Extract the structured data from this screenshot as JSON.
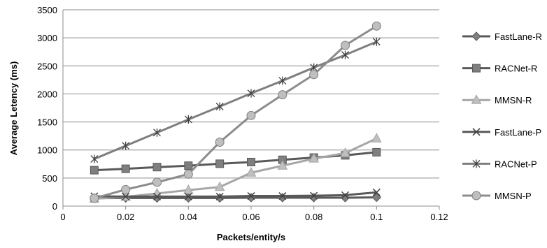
{
  "chart_data": {
    "type": "line",
    "title": "",
    "xlabel": "Packets/entity/s",
    "ylabel": "Average Letency (ms)",
    "xlim": [
      0,
      0.12
    ],
    "ylim": [
      0,
      3500
    ],
    "x_ticks": [
      "0",
      "0.02",
      "0.04",
      "0.06",
      "0.08",
      "0.1",
      "0.12"
    ],
    "y_ticks": [
      "0",
      "500",
      "1000",
      "1500",
      "2000",
      "2500",
      "3000",
      "3500"
    ],
    "grid": "horizontal",
    "legend_position": "right",
    "x": [
      0.01,
      0.02,
      0.03,
      0.04,
      0.05,
      0.06,
      0.07,
      0.08,
      0.09,
      0.1
    ],
    "series": [
      {
        "name": "FastLane-R",
        "marker": "diamond",
        "color": "#595959",
        "values": [
          140,
          145,
          145,
          145,
          145,
          150,
          150,
          150,
          150,
          155
        ]
      },
      {
        "name": "RACNet-R",
        "marker": "square",
        "color": "#595959",
        "values": [
          640,
          665,
          695,
          720,
          755,
          785,
          825,
          865,
          905,
          960
        ]
      },
      {
        "name": "MMSN-R",
        "marker": "triangle",
        "color": "#a6a6a6",
        "values": [
          130,
          165,
          225,
          285,
          340,
          595,
          720,
          845,
          945,
          1205
        ]
      },
      {
        "name": "FastLane-P",
        "marker": "x",
        "color": "#595959",
        "values": [
          175,
          170,
          170,
          170,
          170,
          180,
          180,
          185,
          195,
          245
        ]
      },
      {
        "name": "RACNet-P",
        "marker": "star",
        "color": "#7f7f7f",
        "values": [
          840,
          1075,
          1310,
          1545,
          1775,
          2010,
          2235,
          2470,
          2695,
          2930
        ]
      },
      {
        "name": "MMSN-P",
        "marker": "circle",
        "color": "#8c8c8c",
        "values": [
          140,
          295,
          425,
          570,
          1140,
          1615,
          1985,
          2345,
          2865,
          3210
        ]
      }
    ]
  }
}
